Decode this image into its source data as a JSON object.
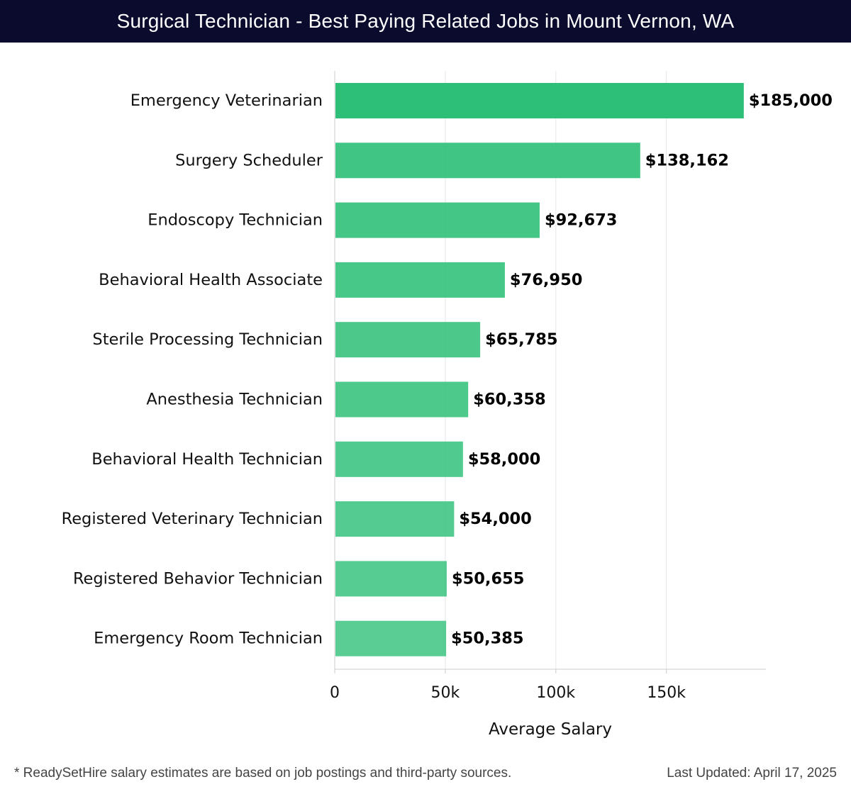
{
  "header": {
    "title": "Surgical Technician - Best Paying Related Jobs in Mount Vernon, WA"
  },
  "chart_data": {
    "type": "bar",
    "orientation": "horizontal",
    "title": "Surgical Technician - Best Paying Related Jobs in Mount Vernon, WA",
    "xlabel": "Average Salary",
    "ylabel": "",
    "xlim": [
      0,
      195000
    ],
    "xticks": [
      0,
      50000,
      100000,
      150000
    ],
    "xtick_labels": [
      "0",
      "50k",
      "100k",
      "150k"
    ],
    "grid": true,
    "categories": [
      "Emergency Veterinarian",
      "Surgery Scheduler",
      "Endoscopy Technician",
      "Behavioral Health Associate",
      "Sterile Processing Technician",
      "Anesthesia Technician",
      "Behavioral Health Technician",
      "Registered Veterinary Technician",
      "Registered Behavior Technician",
      "Emergency Room Technician"
    ],
    "values": [
      185000,
      138162,
      92673,
      76950,
      65785,
      60358,
      58000,
      54000,
      50655,
      50385
    ],
    "value_labels": [
      "$185,000",
      "$138,162",
      "$92,673",
      "$76,950",
      "$65,785",
      "$60,358",
      "$58,000",
      "$54,000",
      "$50,655",
      "$50,385"
    ],
    "colors": {
      "bar": "#2dbf77",
      "grid": "#e6e6e6",
      "axis": "#cccccc"
    }
  },
  "footer": {
    "note": "* ReadySetHire salary estimates are based on job postings and third-party sources.",
    "updated": "Last Updated: April 17, 2025"
  }
}
